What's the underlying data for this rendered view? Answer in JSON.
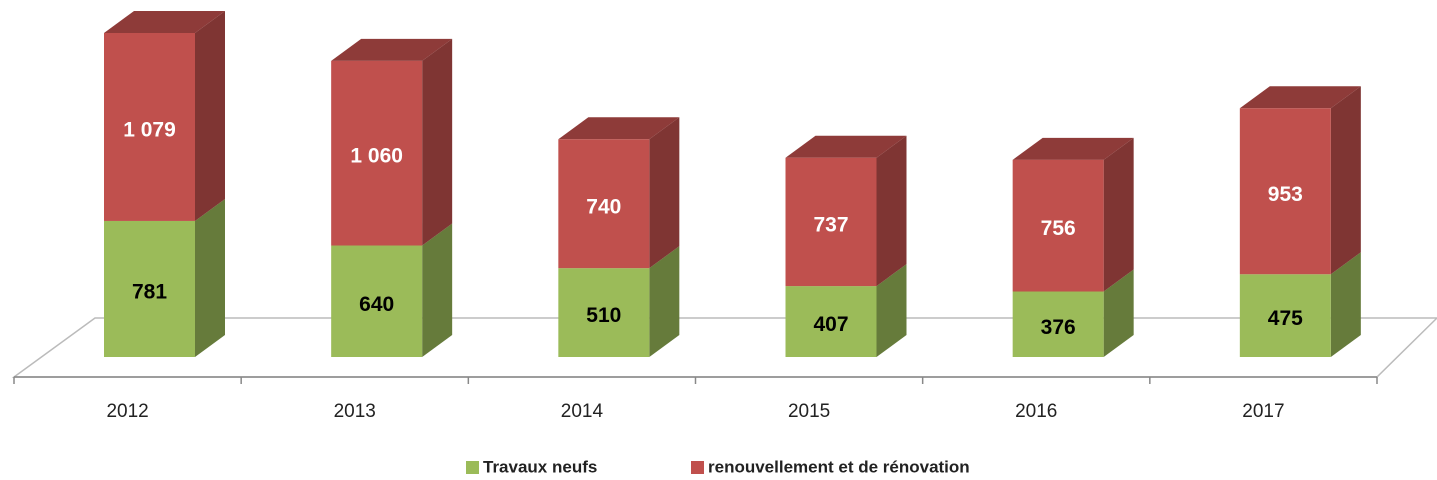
{
  "chart_data": {
    "type": "bar3d_stacked",
    "categories": [
      "2012",
      "2013",
      "2014",
      "2015",
      "2016",
      "2017"
    ],
    "series": [
      {
        "name": "Travaux neufs",
        "color": "#9bbb59",
        "values": [
          781,
          640,
          510,
          407,
          376,
          475
        ]
      },
      {
        "name": "renouvellement et de rénovation",
        "color": "#c0504d",
        "values": [
          1079,
          1060,
          740,
          737,
          756,
          953
        ],
        "value_labels": [
          "1 079",
          "1 060",
          "740",
          "737",
          "756",
          "953"
        ]
      }
    ]
  }
}
